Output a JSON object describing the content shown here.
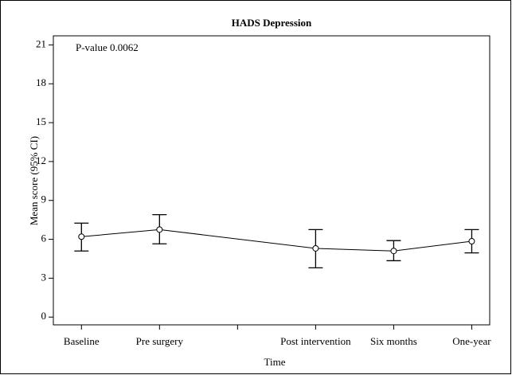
{
  "chart_data": {
    "type": "line",
    "title": "HADS Depression",
    "x_label": "Time",
    "y_label": "Mean score (95% CI)",
    "annotation": "P-value 0.0062",
    "x": [
      0,
      1,
      3,
      4,
      5
    ],
    "xlim": [
      -0.36,
      5.23
    ],
    "xticks": [
      {
        "value": 0,
        "label": "Baseline"
      },
      {
        "value": 1,
        "label": "Pre surgery"
      },
      {
        "value": 2,
        "label": null
      },
      {
        "value": 3,
        "label": "Post intervention"
      },
      {
        "value": 4,
        "label": "Six months"
      },
      {
        "value": 5,
        "label": "One-year"
      }
    ],
    "series": [
      {
        "name": "Mean score",
        "color": "#000000",
        "values": [
          6.2,
          6.75,
          5.3,
          5.1,
          5.85
        ],
        "lower": [
          5.1,
          5.65,
          3.8,
          4.35,
          4.95
        ],
        "upper": [
          7.25,
          7.9,
          6.75,
          5.9,
          6.75
        ]
      }
    ],
    "ylim": [
      -0.6,
      21.7
    ],
    "yticks": [
      0,
      3,
      6,
      9,
      12,
      15,
      18,
      21
    ],
    "grid": false
  }
}
